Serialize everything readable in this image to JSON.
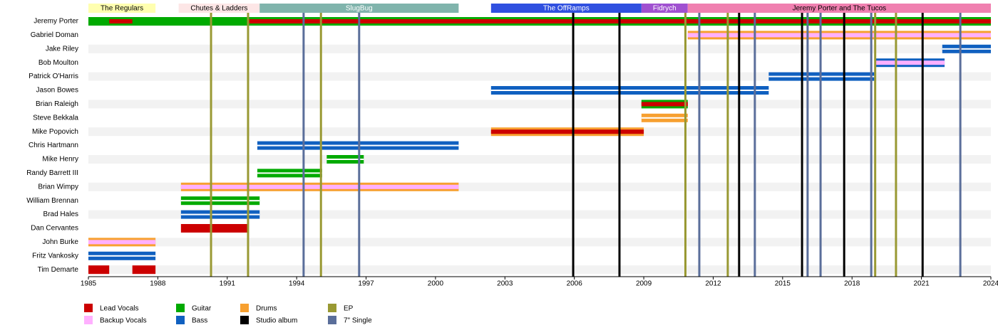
{
  "chart_data": {
    "type": "timeline",
    "xlim": [
      1985,
      2024
    ],
    "xticks": [
      1985,
      1988,
      1991,
      1994,
      1997,
      2000,
      2003,
      2006,
      2009,
      2012,
      2015,
      2018,
      2021,
      2024
    ],
    "legend": [
      {
        "label": "Lead Vocals",
        "color": "#cc0000"
      },
      {
        "label": "Backup Vocals",
        "color": "#ffb0ff"
      },
      {
        "label": "Guitar",
        "color": "#00aa00"
      },
      {
        "label": "Bass",
        "color": "#1060c0"
      },
      {
        "label": "Drums",
        "color": "#f7a030"
      },
      {
        "label": "Studio album",
        "color": "#000000"
      },
      {
        "label": "EP",
        "color": "#999933"
      },
      {
        "label": "7\" Single",
        "color": "#5a6e9a"
      }
    ],
    "bands": [
      {
        "name": "The Regulars",
        "start": 1985,
        "end": 1987.9,
        "color": "#ffffb0",
        "text_color": "#000000"
      },
      {
        "name": "Chutes & Ladders",
        "start": 1988.9,
        "end": 1992.4,
        "color": "#fde6e6",
        "text_color": "#000000"
      },
      {
        "name": "SlugBug",
        "start": 1992.4,
        "end": 2001,
        "color": "#80b4ac",
        "text_color": "#ffffff"
      },
      {
        "name": "The OffRamps",
        "start": 2002.4,
        "end": 2008.9,
        "color": "#3050e0",
        "text_color": "#ffffff"
      },
      {
        "name": "Fidrych",
        "start": 2008.9,
        "end": 2010.9,
        "color": "#a050d0",
        "text_color": "#ffffff"
      },
      {
        "name": "Jeremy Porter and The Tucos",
        "start": 2010.9,
        "end": 2024,
        "color": "#f080b0",
        "text_color": "#000000"
      }
    ],
    "members": [
      {
        "name": "Jeremy Porter",
        "periods": [
          {
            "start": 1985,
            "end": 2024,
            "role": "Guitar",
            "stripe": "Lead Vocals",
            "stripe_start": 1985.9,
            "stripe_end": 1986.9
          },
          {
            "start": 1991.9,
            "end": 2024,
            "role": "Guitar",
            "stripe": "Lead Vocals"
          }
        ]
      },
      {
        "name": "Gabriel Doman",
        "periods": [
          {
            "start": 2010.9,
            "end": 2024,
            "role": "Drums",
            "stripe": "Backup Vocals"
          }
        ]
      },
      {
        "name": "Jake Riley",
        "periods": [
          {
            "start": 2021.9,
            "end": 2024,
            "role": "Bass"
          }
        ]
      },
      {
        "name": "Bob Moulton",
        "periods": [
          {
            "start": 2019,
            "end": 2022,
            "role": "Bass",
            "stripe": "Backup Vocals"
          }
        ]
      },
      {
        "name": "Patrick O'Harris",
        "periods": [
          {
            "start": 2014.4,
            "end": 2019,
            "role": "Bass"
          }
        ]
      },
      {
        "name": "Jason Bowes",
        "periods": [
          {
            "start": 2002.4,
            "end": 2014.4,
            "role": "Bass"
          }
        ]
      },
      {
        "name": "Brian Raleigh",
        "periods": [
          {
            "start": 2008.9,
            "end": 2010.9,
            "role": "Guitar",
            "stripe": "Lead Vocals"
          }
        ]
      },
      {
        "name": "Steve Bekkala",
        "periods": [
          {
            "start": 2008.9,
            "end": 2010.9,
            "role": "Drums"
          }
        ]
      },
      {
        "name": "Mike Popovich",
        "periods": [
          {
            "start": 2002.4,
            "end": 2009,
            "role": "Drums",
            "stripe": "Lead Vocals"
          }
        ]
      },
      {
        "name": "Chris Hartmann",
        "periods": [
          {
            "start": 1992.3,
            "end": 2001,
            "role": "Bass"
          }
        ]
      },
      {
        "name": "Mike Henry",
        "periods": [
          {
            "start": 1995.3,
            "end": 1996.9,
            "role": "Guitar"
          }
        ]
      },
      {
        "name": "Randy Barrett III",
        "periods": [
          {
            "start": 1992.3,
            "end": 1995.1,
            "role": "Guitar"
          }
        ]
      },
      {
        "name": "Brian Wimpy",
        "periods": [
          {
            "start": 1989,
            "end": 2001,
            "role": "Drums",
            "stripe": "Backup Vocals"
          }
        ]
      },
      {
        "name": "William Brennan",
        "periods": [
          {
            "start": 1989,
            "end": 1992.4,
            "role": "Guitar"
          }
        ]
      },
      {
        "name": "Brad Hales",
        "periods": [
          {
            "start": 1989,
            "end": 1992.4,
            "role": "Bass"
          }
        ]
      },
      {
        "name": "Dan Cervantes",
        "periods": [
          {
            "start": 1989,
            "end": 1991.9,
            "role": "Lead Vocals"
          }
        ]
      },
      {
        "name": "John Burke",
        "periods": [
          {
            "start": 1985,
            "end": 1987.9,
            "role": "Drums",
            "stripe": "Backup Vocals"
          }
        ]
      },
      {
        "name": "Fritz Vankosky",
        "periods": [
          {
            "start": 1985,
            "end": 1987.9,
            "role": "Bass"
          }
        ]
      },
      {
        "name": "Tim Demarte",
        "periods": [
          {
            "start": 1985,
            "end": 1985.9,
            "role": "Lead Vocals"
          },
          {
            "start": 1986.9,
            "end": 1987.9,
            "role": "Lead Vocals"
          }
        ]
      }
    ],
    "events": [
      {
        "year": 1990.3,
        "type": "EP"
      },
      {
        "year": 1991.9,
        "type": "EP"
      },
      {
        "year": 1995.05,
        "type": "EP"
      },
      {
        "year": 2010.8,
        "type": "EP"
      },
      {
        "year": 2012.63,
        "type": "EP"
      },
      {
        "year": 2019.0,
        "type": "EP"
      },
      {
        "year": 2019.9,
        "type": "EP"
      },
      {
        "year": 2005.95,
        "type": "Studio album"
      },
      {
        "year": 2007.95,
        "type": "Studio album"
      },
      {
        "year": 2013.12,
        "type": "Studio album"
      },
      {
        "year": 2015.84,
        "type": "Studio album"
      },
      {
        "year": 2017.66,
        "type": "Studio album"
      },
      {
        "year": 2021.05,
        "type": "Studio album"
      },
      {
        "year": 1994.3,
        "type": "7\" Single"
      },
      {
        "year": 1996.7,
        "type": "7\" Single"
      },
      {
        "year": 2011.4,
        "type": "7\" Single"
      },
      {
        "year": 2013.8,
        "type": "7\" Single"
      },
      {
        "year": 2016.08,
        "type": "7\" Single"
      },
      {
        "year": 2016.64,
        "type": "7\" Single"
      },
      {
        "year": 2018.83,
        "type": "7\" Single"
      },
      {
        "year": 2022.68,
        "type": "7\" Single"
      }
    ]
  }
}
